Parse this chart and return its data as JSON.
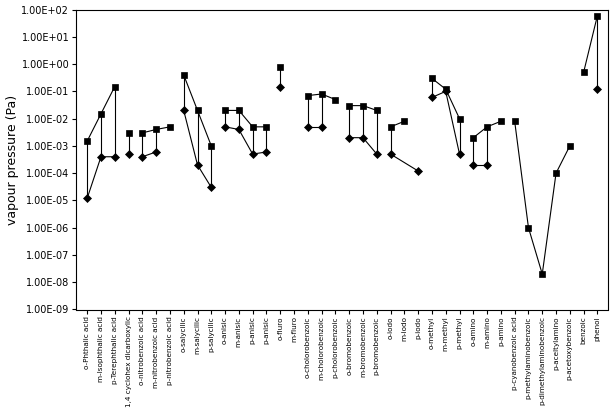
{
  "ylabel": "vapour pressure (Pa)",
  "figsize": [
    6.14,
    4.13
  ],
  "dpi": 100,
  "ytick_labels": [
    "1.00E-09",
    "1.00E-08",
    "1.00E-07",
    "1.00E-06",
    "1.00E-05",
    "1.00E-04",
    "1.00E-03",
    "1.00E-02",
    "1.00E-01",
    "1.00E+00",
    "1.00E+01",
    "1.00E+02"
  ],
  "x_labels": [
    "o-Phthalic acid",
    "m-Isophthalic acid",
    "p-Terephthalic acid",
    "1,4 cyclohex dicarboxylic",
    "o-nitrobenzoic acid",
    "m-nitrobenzoic acid",
    "p-nitrobenzoic acid",
    "o-salycilic",
    "m-salycilic",
    "p-salycilic",
    "o-anisic",
    "m-anisic",
    "p-anisic",
    "p-anisic",
    "o-fluro",
    "m-fluro",
    "o-cholorobenzoic",
    "m-cholorobenzoic",
    "p-cholorobenzoic",
    "o-bromobenzoic",
    "m-bromobenzoic",
    "p-bromobenzoic",
    "o-iodo",
    "m-iodo",
    "p-iodo",
    "o-methyl",
    "m-methyl",
    "p-methyl",
    "o-amino",
    "m-amino",
    "p-amino",
    "p-cyanobenzoic acid",
    "p-methylaminobenzoic",
    "p-dimethylaminobenzoic",
    "p-aceltylamino",
    "p-acetoxybenzoic",
    "benzoic",
    "phenol"
  ],
  "solid_vals": [
    0.0015,
    0.015,
    0.15,
    0.003,
    0.003,
    0.004,
    0.005,
    0.4,
    0.02,
    0.001,
    0.02,
    0.02,
    0.005,
    0.005,
    0.8,
    null,
    0.07,
    0.08,
    0.05,
    0.03,
    0.03,
    0.02,
    0.005,
    0.008,
    null,
    0.3,
    0.12,
    0.01,
    0.002,
    0.005,
    0.008,
    0.008,
    1e-06,
    2e-08,
    0.0001,
    0.001,
    0.5,
    60.0
  ],
  "liquid_vals": [
    1.2e-05,
    0.0004,
    0.0004,
    0.0005,
    0.0004,
    0.0006,
    null,
    0.02,
    0.0002,
    3e-05,
    0.005,
    0.004,
    0.0005,
    0.0006,
    0.15,
    null,
    0.005,
    0.005,
    null,
    0.002,
    0.002,
    0.0005,
    0.0005,
    null,
    0.00012,
    0.06,
    0.1,
    0.0005,
    0.0002,
    0.0002,
    null,
    null,
    null,
    null,
    null,
    null,
    null,
    0.12
  ],
  "family_groups": [
    [
      0,
      1,
      2
    ],
    [
      3
    ],
    [
      4,
      5,
      6
    ],
    [
      7,
      8,
      9
    ],
    [
      10,
      11,
      12,
      13
    ],
    [
      14,
      15
    ],
    [
      16,
      17,
      18
    ],
    [
      19,
      20,
      21
    ],
    [
      22,
      23,
      24
    ],
    [
      25,
      26,
      27
    ],
    [
      28,
      29,
      30
    ],
    [
      31,
      32,
      33,
      34,
      35
    ],
    [
      36,
      37
    ]
  ]
}
